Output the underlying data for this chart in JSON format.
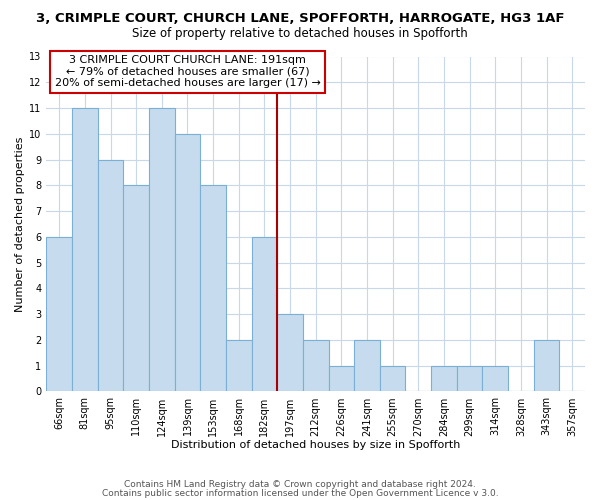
{
  "title": "3, CRIMPLE COURT, CHURCH LANE, SPOFFORTH, HARROGATE, HG3 1AF",
  "subtitle": "Size of property relative to detached houses in Spofforth",
  "xlabel": "Distribution of detached houses by size in Spofforth",
  "ylabel": "Number of detached properties",
  "bar_labels": [
    "66sqm",
    "81sqm",
    "95sqm",
    "110sqm",
    "124sqm",
    "139sqm",
    "153sqm",
    "168sqm",
    "182sqm",
    "197sqm",
    "212sqm",
    "226sqm",
    "241sqm",
    "255sqm",
    "270sqm",
    "284sqm",
    "299sqm",
    "314sqm",
    "328sqm",
    "343sqm",
    "357sqm"
  ],
  "bar_values": [
    6,
    11,
    9,
    8,
    11,
    10,
    8,
    2,
    6,
    3,
    2,
    1,
    2,
    1,
    0,
    1,
    1,
    1,
    0,
    2,
    0
  ],
  "bar_color_normal": "#c6dcee",
  "bar_edgecolor_normal": "#7bafd4",
  "bar_color_highlight": "#c6dcee",
  "bar_edgecolor_highlight": "#7bafd4",
  "highlight_index": 8,
  "ref_line_color": "#aa0000",
  "ylim": [
    0,
    13
  ],
  "yticks": [
    0,
    1,
    2,
    3,
    4,
    5,
    6,
    7,
    8,
    9,
    10,
    11,
    12,
    13
  ],
  "annotation_title": "3 CRIMPLE COURT CHURCH LANE: 191sqm",
  "annotation_line1": "← 79% of detached houses are smaller (67)",
  "annotation_line2": "20% of semi-detached houses are larger (17) →",
  "footer1": "Contains HM Land Registry data © Crown copyright and database right 2024.",
  "footer2": "Contains public sector information licensed under the Open Government Licence v 3.0.",
  "background_color": "#ffffff",
  "grid_color": "#c8d8e8",
  "title_fontsize": 9.5,
  "subtitle_fontsize": 8.5,
  "axis_label_fontsize": 8,
  "tick_fontsize": 7,
  "annotation_fontsize": 8,
  "footer_fontsize": 6.5
}
